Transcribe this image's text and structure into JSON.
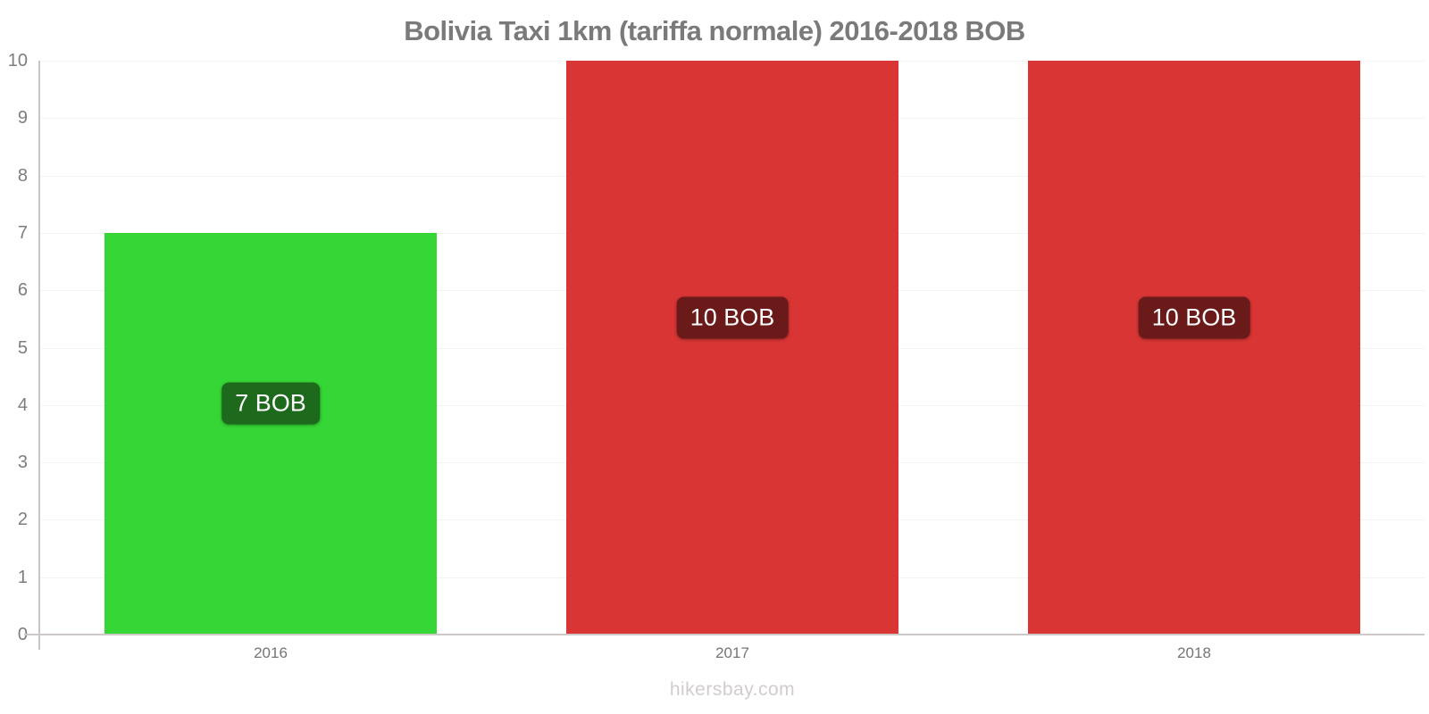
{
  "chart_data": {
    "type": "bar",
    "title": "Bolivia Taxi 1km (tariffa normale) 2016-2018 BOB",
    "categories": [
      "2016",
      "2017",
      "2018"
    ],
    "values": [
      7,
      10,
      10
    ],
    "bar_labels": [
      "7 BOB",
      "10 BOB",
      "10 BOB"
    ],
    "bar_colors": [
      "#36d636",
      "#d93535",
      "#d93535"
    ],
    "bar_label_bg_colors": [
      "#1d6a1d",
      "#6b1a1a",
      "#6b1a1a"
    ],
    "currency": "BOB",
    "xlabel": "",
    "ylabel": "",
    "ylim": [
      0,
      10
    ],
    "yticks": [
      0,
      1,
      2,
      3,
      4,
      5,
      6,
      7,
      8,
      9,
      10
    ],
    "grid": true,
    "legend": false
  },
  "footer": {
    "text": "hikersbay.com"
  },
  "colors": {
    "title_text": "#7a7a7a",
    "y_tick_text": "#7d7d7d",
    "x_tick_text": "#757575",
    "axis_line": "#c9c5c5",
    "baseline": "#cdc9c9",
    "gridline": "#f3f3f3",
    "footer_text": "#d2cccc",
    "bar_label_text": "#ffffff"
  }
}
